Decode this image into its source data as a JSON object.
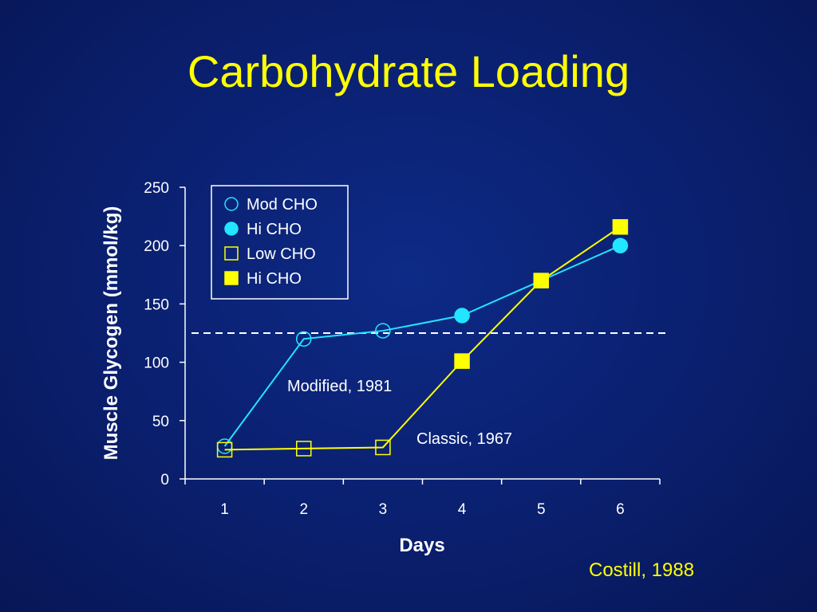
{
  "slide": {
    "title": "Carbohydrate Loading",
    "source_note": "Costill, 1988"
  },
  "chart_data": {
    "type": "line",
    "xlabel": "Days",
    "ylabel": "Muscle Glycogen (mmol/kg)",
    "categories": [
      "1",
      "2",
      "3",
      "4",
      "5",
      "6"
    ],
    "y_ticks": [
      "0",
      "50",
      "100",
      "150",
      "200",
      "250"
    ],
    "ylim": [
      0,
      250
    ],
    "grid": false,
    "legend_position": "top-left",
    "reference_line": {
      "value": 125,
      "style": "dashed",
      "color": "#ffffff"
    },
    "series": [
      {
        "name": "Mod CHO / Hi CHO",
        "label": "Modified, 1981",
        "color": "#22e5ff",
        "marker": "circle",
        "values": [
          28,
          120,
          127,
          140,
          170,
          200
        ],
        "filled": [
          false,
          false,
          false,
          true,
          true,
          true
        ]
      },
      {
        "name": "Low CHO / Hi CHO",
        "label": "Classic, 1967",
        "color": "#ffff00",
        "marker": "square",
        "values": [
          25,
          26,
          27,
          101,
          170,
          216
        ],
        "filled": [
          false,
          false,
          false,
          true,
          true,
          true
        ]
      }
    ],
    "legend": [
      {
        "label": "Mod CHO",
        "marker": "circle",
        "filled": false,
        "color": "#22e5ff"
      },
      {
        "label": "Hi CHO",
        "marker": "circle",
        "filled": true,
        "color": "#22e5ff"
      },
      {
        "label": "Low CHO",
        "marker": "square",
        "filled": false,
        "color": "#ffff00"
      },
      {
        "label": "Hi CHO",
        "marker": "square",
        "filled": true,
        "color": "#ffff00"
      }
    ]
  }
}
